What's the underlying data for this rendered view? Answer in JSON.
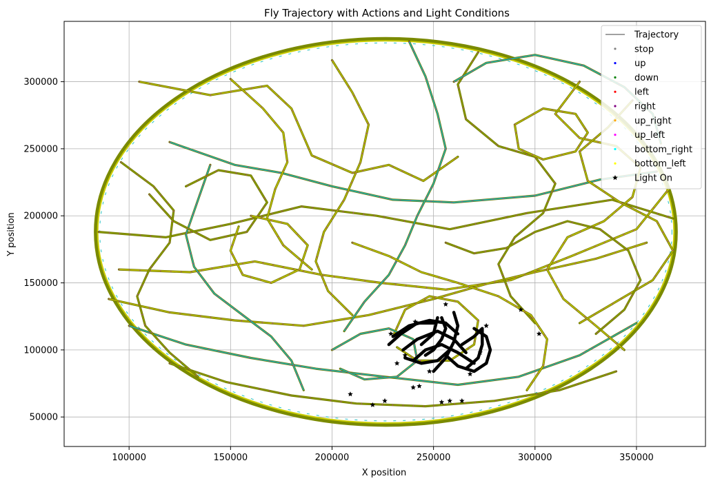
{
  "chart_data": {
    "type": "scatter",
    "title": "Fly Trajectory with Actions and Light Conditions",
    "xlabel": "X position",
    "ylabel": "Y position",
    "xlim": [
      68000,
      384000
    ],
    "ylim": [
      28000,
      345000
    ],
    "xticks": [
      100000,
      150000,
      200000,
      250000,
      300000,
      350000
    ],
    "yticks": [
      50000,
      100000,
      150000,
      200000,
      250000,
      300000
    ],
    "xtick_labels": [
      "100000",
      "150000",
      "200000",
      "250000",
      "300000",
      "350000"
    ],
    "ytick_labels": [
      "50000",
      "100000",
      "150000",
      "200000",
      "250000",
      "300000"
    ],
    "grid": true,
    "legend_position": "top-right",
    "arena_boundary": {
      "center": [
        226500,
        188000
      ],
      "x_radius": 143000,
      "y_radius": 144000
    },
    "series": [
      {
        "name": "Trajectory",
        "kind": "line",
        "color": "#808080"
      },
      {
        "name": "stop",
        "kind": "point",
        "color": "#808080"
      },
      {
        "name": "up",
        "kind": "point",
        "color": "#0000ff"
      },
      {
        "name": "down",
        "kind": "point",
        "color": "#008000"
      },
      {
        "name": "left",
        "kind": "point",
        "color": "#ff0000"
      },
      {
        "name": "right",
        "kind": "point",
        "color": "#800080"
      },
      {
        "name": "up_right",
        "kind": "point",
        "color": "#ffa500"
      },
      {
        "name": "up_left",
        "kind": "point",
        "color": "#ff00ff"
      },
      {
        "name": "bottom_right",
        "kind": "point",
        "color": "#00ffff"
      },
      {
        "name": "bottom_left",
        "kind": "point",
        "color": "#ffff00"
      },
      {
        "name": "Light On",
        "kind": "star",
        "color": "#000000"
      }
    ],
    "trajectory_paths": [
      [
        [
          105000,
          300000
        ],
        [
          140000,
          290000
        ],
        [
          168000,
          297000
        ],
        [
          180000,
          280000
        ],
        [
          190000,
          245000
        ],
        [
          210000,
          232000
        ],
        [
          228000,
          238000
        ],
        [
          245000,
          226000
        ],
        [
          262000,
          244000
        ]
      ],
      [
        [
          120000,
          255000
        ],
        [
          152000,
          238000
        ],
        [
          175000,
          232000
        ],
        [
          200000,
          222000
        ],
        [
          230000,
          212000
        ],
        [
          260000,
          210000
        ],
        [
          300000,
          215000
        ],
        [
          332000,
          227000
        ],
        [
          360000,
          233000
        ]
      ],
      [
        [
          85000,
          188000
        ],
        [
          118000,
          184000
        ],
        [
          150000,
          194000
        ],
        [
          185000,
          207000
        ],
        [
          222000,
          200000
        ],
        [
          258000,
          190000
        ],
        [
          296000,
          202000
        ],
        [
          338000,
          212000
        ],
        [
          368000,
          198000
        ]
      ],
      [
        [
          95000,
          160000
        ],
        [
          130000,
          158000
        ],
        [
          162000,
          166000
        ],
        [
          195000,
          156000
        ],
        [
          224000,
          150000
        ],
        [
          256000,
          145000
        ],
        [
          288000,
          152000
        ],
        [
          318000,
          170000
        ],
        [
          350000,
          190000
        ],
        [
          366000,
          220000
        ]
      ],
      [
        [
          90000,
          138000
        ],
        [
          120000,
          128000
        ],
        [
          152000,
          122000
        ],
        [
          186000,
          118000
        ],
        [
          218000,
          126000
        ],
        [
          250000,
          138000
        ],
        [
          278000,
          150000
        ],
        [
          300000,
          158000
        ],
        [
          330000,
          168000
        ],
        [
          355000,
          180000
        ]
      ],
      [
        [
          100000,
          118000
        ],
        [
          128000,
          104000
        ],
        [
          160000,
          94000
        ],
        [
          192000,
          86000
        ],
        [
          226000,
          80000
        ],
        [
          262000,
          74000
        ],
        [
          292000,
          80000
        ],
        [
          322000,
          96000
        ],
        [
          350000,
          120000
        ]
      ],
      [
        [
          120000,
          90000
        ],
        [
          148000,
          76000
        ],
        [
          180000,
          66000
        ],
        [
          212000,
          60000
        ],
        [
          246000,
          58000
        ],
        [
          280000,
          62000
        ],
        [
          312000,
          70000
        ],
        [
          340000,
          84000
        ]
      ],
      [
        [
          150000,
          302000
        ],
        [
          166000,
          280000
        ],
        [
          176000,
          262000
        ],
        [
          178000,
          240000
        ],
        [
          172000,
          220000
        ],
        [
          168000,
          198000
        ],
        [
          176000,
          178000
        ],
        [
          190000,
          160000
        ]
      ],
      [
        [
          200000,
          316000
        ],
        [
          210000,
          292000
        ],
        [
          218000,
          268000
        ],
        [
          214000,
          240000
        ],
        [
          206000,
          212000
        ],
        [
          196000,
          188000
        ],
        [
          192000,
          166000
        ],
        [
          198000,
          144000
        ],
        [
          210000,
          126000
        ]
      ],
      [
        [
          238000,
          330000
        ],
        [
          246000,
          304000
        ],
        [
          252000,
          276000
        ],
        [
          256000,
          250000
        ],
        [
          250000,
          224000
        ],
        [
          242000,
          200000
        ],
        [
          236000,
          178000
        ],
        [
          228000,
          156000
        ],
        [
          216000,
          136000
        ],
        [
          206000,
          114000
        ]
      ],
      [
        [
          272000,
          322000
        ],
        [
          262000,
          298000
        ],
        [
          266000,
          272000
        ],
        [
          282000,
          252000
        ],
        [
          300000,
          244000
        ],
        [
          310000,
          224000
        ],
        [
          304000,
          202000
        ],
        [
          290000,
          184000
        ],
        [
          282000,
          164000
        ],
        [
          288000,
          140000
        ],
        [
          300000,
          120000
        ]
      ],
      [
        [
          322000,
          300000
        ],
        [
          310000,
          276000
        ],
        [
          322000,
          258000
        ],
        [
          340000,
          252000
        ],
        [
          352000,
          236000
        ],
        [
          348000,
          214000
        ],
        [
          334000,
          196000
        ],
        [
          316000,
          184000
        ],
        [
          306000,
          160000
        ],
        [
          314000,
          138000
        ],
        [
          330000,
          118000
        ],
        [
          344000,
          100000
        ]
      ],
      [
        [
          348000,
          286000
        ],
        [
          336000,
          266000
        ],
        [
          322000,
          248000
        ],
        [
          326000,
          226000
        ],
        [
          342000,
          210000
        ],
        [
          360000,
          196000
        ],
        [
          368000,
          174000
        ],
        [
          358000,
          152000
        ],
        [
          340000,
          136000
        ],
        [
          322000,
          120000
        ]
      ],
      [
        [
          140000,
          238000
        ],
        [
          134000,
          212000
        ],
        [
          128000,
          186000
        ],
        [
          132000,
          162000
        ],
        [
          142000,
          142000
        ],
        [
          156000,
          126000
        ],
        [
          170000,
          110000
        ],
        [
          180000,
          92000
        ],
        [
          186000,
          70000
        ]
      ],
      [
        [
          110000,
          216000
        ],
        [
          122000,
          196000
        ],
        [
          140000,
          182000
        ],
        [
          158000,
          188000
        ],
        [
          168000,
          210000
        ],
        [
          160000,
          230000
        ],
        [
          144000,
          234000
        ],
        [
          128000,
          222000
        ]
      ],
      [
        [
          160000,
          200000
        ],
        [
          178000,
          194000
        ],
        [
          188000,
          178000
        ],
        [
          184000,
          160000
        ],
        [
          170000,
          150000
        ],
        [
          156000,
          156000
        ],
        [
          150000,
          174000
        ],
        [
          154000,
          192000
        ]
      ],
      [
        [
          290000,
          268000
        ],
        [
          304000,
          280000
        ],
        [
          320000,
          276000
        ],
        [
          326000,
          262000
        ],
        [
          320000,
          248000
        ],
        [
          304000,
          242000
        ],
        [
          292000,
          250000
        ],
        [
          290000,
          268000
        ]
      ],
      [
        [
          260000,
          300000
        ],
        [
          276000,
          314000
        ],
        [
          300000,
          320000
        ],
        [
          324000,
          312000
        ],
        [
          344000,
          296000
        ],
        [
          358000,
          276000
        ],
        [
          362000,
          254000
        ]
      ],
      [
        [
          96000,
          240000
        ],
        [
          112000,
          222000
        ],
        [
          122000,
          204000
        ],
        [
          120000,
          180000
        ],
        [
          110000,
          160000
        ],
        [
          104000,
          140000
        ],
        [
          108000,
          118000
        ],
        [
          120000,
          98000
        ],
        [
          134000,
          80000
        ]
      ],
      [
        [
          210000,
          180000
        ],
        [
          228000,
          170000
        ],
        [
          244000,
          158000
        ],
        [
          262000,
          150000
        ],
        [
          282000,
          140000
        ],
        [
          298000,
          126000
        ],
        [
          306000,
          108000
        ],
        [
          304000,
          88000
        ],
        [
          296000,
          70000
        ]
      ],
      [
        [
          230000,
          110000
        ],
        [
          236000,
          130000
        ],
        [
          248000,
          140000
        ],
        [
          262000,
          136000
        ],
        [
          272000,
          122000
        ],
        [
          270000,
          104000
        ],
        [
          258000,
          92000
        ],
        [
          242000,
          92000
        ],
        [
          232000,
          102000
        ]
      ],
      [
        [
          200000,
          100000
        ],
        [
          214000,
          112000
        ],
        [
          228000,
          116000
        ],
        [
          240000,
          108000
        ],
        [
          242000,
          92000
        ],
        [
          232000,
          80000
        ],
        [
          216000,
          78000
        ],
        [
          204000,
          86000
        ]
      ],
      [
        [
          256000,
          180000
        ],
        [
          270000,
          172000
        ],
        [
          286000,
          176000
        ],
        [
          300000,
          188000
        ],
        [
          316000,
          196000
        ],
        [
          332000,
          190000
        ],
        [
          346000,
          174000
        ],
        [
          352000,
          152000
        ],
        [
          344000,
          130000
        ],
        [
          330000,
          112000
        ]
      ]
    ],
    "light_on_paths": [
      [
        [
          230000,
          110000
        ],
        [
          238000,
          118000
        ],
        [
          248000,
          122000
        ],
        [
          256000,
          120000
        ],
        [
          262000,
          112000
        ]
      ],
      [
        [
          235000,
          100000
        ],
        [
          242000,
          108000
        ],
        [
          252000,
          114000
        ],
        [
          260000,
          108000
        ],
        [
          266000,
          98000
        ]
      ],
      [
        [
          240000,
          92000
        ],
        [
          246000,
          100000
        ],
        [
          254000,
          104000
        ],
        [
          262000,
          98000
        ],
        [
          270000,
          90000
        ]
      ],
      [
        [
          250000,
          84000
        ],
        [
          256000,
          94000
        ],
        [
          260000,
          106000
        ],
        [
          262000,
          118000
        ],
        [
          260000,
          128000
        ]
      ],
      [
        [
          256000,
          96000
        ],
        [
          262000,
          88000
        ],
        [
          270000,
          84000
        ],
        [
          276000,
          90000
        ],
        [
          278000,
          100000
        ],
        [
          276000,
          110000
        ],
        [
          270000,
          116000
        ]
      ],
      [
        [
          244000,
          104000
        ],
        [
          250000,
          112000
        ],
        [
          252000,
          124000
        ]
      ],
      [
        [
          236000,
          94000
        ],
        [
          244000,
          90000
        ],
        [
          252000,
          92000
        ],
        [
          258000,
          100000
        ]
      ],
      [
        [
          228000,
          104000
        ],
        [
          234000,
          112000
        ],
        [
          242000,
          120000
        ],
        [
          250000,
          120000
        ]
      ],
      [
        [
          264000,
          104000
        ],
        [
          270000,
          110000
        ],
        [
          274000,
          116000
        ],
        [
          274000,
          104000
        ],
        [
          272000,
          94000
        ],
        [
          266000,
          86000
        ]
      ],
      [
        [
          246000,
          96000
        ],
        [
          250000,
          100000
        ],
        [
          254000,
          108000
        ],
        [
          256000,
          116000
        ],
        [
          254000,
          124000
        ]
      ]
    ],
    "light_on_points": [
      [
        209000,
        67000
      ],
      [
        220000,
        59000
      ],
      [
        226000,
        62000
      ],
      [
        240000,
        72000
      ],
      [
        243000,
        73000
      ],
      [
        254000,
        61000
      ],
      [
        258000,
        62000
      ],
      [
        264000,
        62000
      ],
      [
        302000,
        112000
      ],
      [
        293000,
        130000
      ],
      [
        256000,
        134000
      ],
      [
        273000,
        98000
      ],
      [
        276000,
        118000
      ],
      [
        232000,
        90000
      ],
      [
        236000,
        96000
      ],
      [
        268000,
        82000
      ],
      [
        248000,
        84000
      ],
      [
        241000,
        121000
      ],
      [
        229000,
        112000
      ]
    ]
  }
}
